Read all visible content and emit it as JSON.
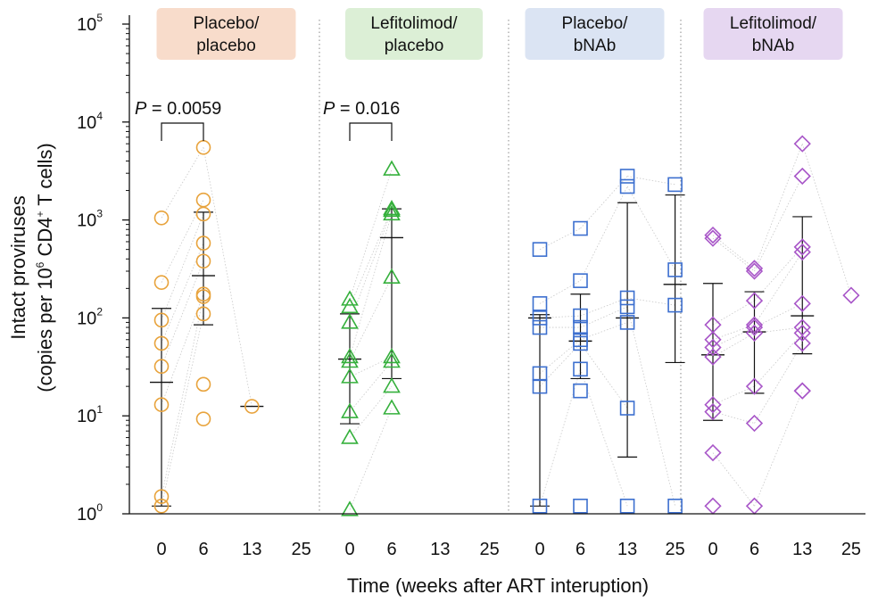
{
  "chart_data": {
    "type": "scatter",
    "yscale": "log10",
    "ylim": [
      1,
      100000
    ],
    "ylabel_line1": "Intact proviruses",
    "ylabel_line2_pre": "(copies per 10",
    "ylabel_line2_sup1": "6",
    "ylabel_line2_mid": " CD4",
    "ylabel_line2_sup2": "+",
    "ylabel_line2_post": " T cells)",
    "xlabel": "Time (weeks after ART interuption)",
    "y_ticks": [
      {
        "base": "10",
        "exp": "0",
        "value": 1
      },
      {
        "base": "10",
        "exp": "1",
        "value": 10
      },
      {
        "base": "10",
        "exp": "2",
        "value": 100
      },
      {
        "base": "10",
        "exp": "3",
        "value": 1000
      },
      {
        "base": "10",
        "exp": "4",
        "value": 10000
      },
      {
        "base": "10",
        "exp": "5",
        "value": 100000
      }
    ],
    "x_tick_labels": [
      "0",
      "6",
      "13",
      "25"
    ],
    "groups": [
      {
        "label_line1": "Placebo/",
        "label_line2": "placebo",
        "label_bg": "#f8dccb",
        "color": "#e8a33c",
        "marker": "circle",
        "pvalue": "P = 0.0059",
        "pvalue_between": [
          "0",
          "6"
        ],
        "timepoints": [
          {
            "week": "0",
            "values": [
              1050,
              230,
              95,
              55,
              32,
              13,
              1.5,
              1.2
            ],
            "median": 22,
            "upper": 125,
            "lower": 1.2
          },
          {
            "week": "6",
            "values": [
              5500,
              1600,
              1150,
              580,
              380,
              175,
              165,
              110,
              21,
              9.3
            ],
            "median": 270,
            "upper": 1200,
            "lower": 85
          },
          {
            "week": "13",
            "values": [
              12.5
            ],
            "median": 12.5,
            "upper": null,
            "lower": null
          },
          {
            "week": "25",
            "values": [],
            "median": null,
            "upper": null,
            "lower": null
          }
        ]
      },
      {
        "label_line1": "Lefitolimod/",
        "label_line2": "placebo",
        "label_bg": "#dcefd6",
        "color": "#35b03c",
        "marker": "triangle",
        "pvalue": "P = 0.016",
        "pvalue_between": [
          "0",
          "6"
        ],
        "timepoints": [
          {
            "week": "0",
            "values": [
              155,
              130,
              90,
              40,
              36,
              25,
              11,
              6,
              1.1
            ],
            "median": 38,
            "upper": 110,
            "lower": 8.3
          },
          {
            "week": "6",
            "values": [
              3300,
              1300,
              1250,
              1150,
              260,
              40,
              36,
              20,
              12
            ],
            "median": 660,
            "upper": 1300,
            "lower": 24
          },
          {
            "week": "13",
            "values": [],
            "median": null,
            "upper": null,
            "lower": null
          },
          {
            "week": "25",
            "values": [],
            "median": null,
            "upper": null,
            "lower": null
          }
        ]
      },
      {
        "label_line1": "Placebo/",
        "label_line2": "bNAb",
        "label_bg": "#dbe4f3",
        "color": "#3c6fcf",
        "marker": "square",
        "pvalue": "",
        "pvalue_between": [],
        "timepoints": [
          {
            "week": "0",
            "values": [
              500,
              140,
              100,
              80,
              27,
              20,
              1.2
            ],
            "median": 100,
            "upper": 108,
            "lower": 1.2
          },
          {
            "week": "6",
            "values": [
              820,
              240,
              105,
              80,
              60,
              55,
              30,
              18,
              1.2
            ],
            "median": 58,
            "upper": 175,
            "lower": 24
          },
          {
            "week": "13",
            "values": [
              2800,
              2200,
              160,
              130,
              90,
              12,
              1.2
            ],
            "median": 100,
            "upper": 1500,
            "lower": 3.8
          },
          {
            "week": "25",
            "values": [
              2300,
              310,
              135,
              1.2
            ],
            "median": 220,
            "upper": 1800,
            "lower": 35
          }
        ]
      },
      {
        "label_line1": "Lefitolimod/",
        "label_line2": "bNAb",
        "label_bg": "#e6d7f1",
        "color": "#a856c8",
        "marker": "diamond",
        "pvalue": "",
        "pvalue_between": [],
        "timepoints": [
          {
            "week": "0",
            "values": [
              700,
              650,
              85,
              60,
              50,
              40,
              13,
              11,
              4.2,
              1.2
            ],
            "median": 42,
            "upper": 225,
            "lower": 9
          },
          {
            "week": "6",
            "values": [
              320,
              300,
              150,
              85,
              80,
              70,
              20,
              8.4,
              1.2
            ],
            "median": 72,
            "upper": 185,
            "lower": 17
          },
          {
            "week": "13",
            "values": [
              6000,
              2800,
              530,
              470,
              140,
              80,
              70,
              55,
              18,
              18
            ],
            "median": 105,
            "upper": 1080,
            "lower": 43
          },
          {
            "week": "25",
            "values": [
              170
            ],
            "median": null,
            "upper": null,
            "lower": null
          }
        ]
      }
    ]
  }
}
